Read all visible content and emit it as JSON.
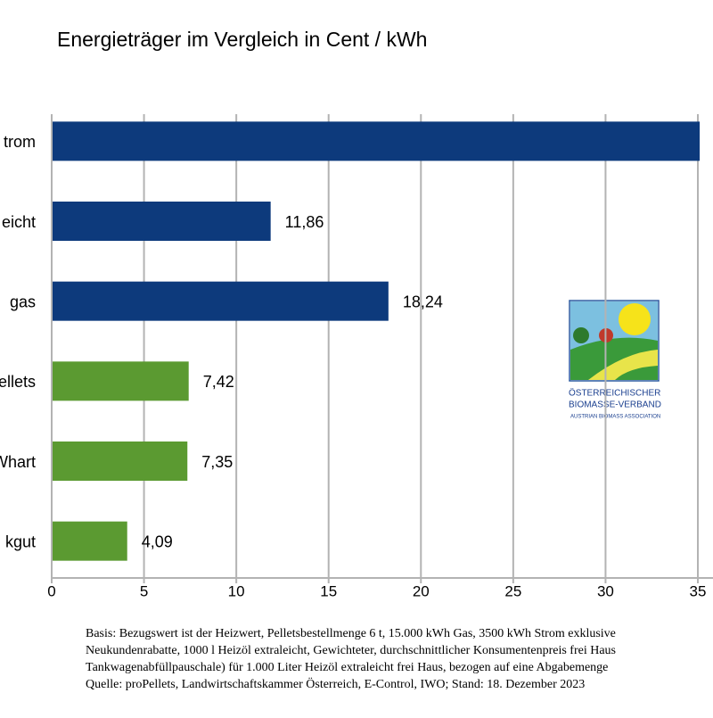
{
  "chart_data": {
    "type": "barh",
    "title": "Energieträger im Vergleich in Cent / kWh",
    "categories": [
      "trom",
      "eicht",
      "gas",
      "ellets",
      "Whart",
      "kgut"
    ],
    "values": [
      35.1,
      11.86,
      18.24,
      7.42,
      7.35,
      4.09
    ],
    "value_labels": [
      null,
      "11,86",
      "18,24",
      "7,42",
      "7,35",
      "4,09"
    ],
    "colors": [
      "#0d3a7c",
      "#0d3a7c",
      "#0d3a7c",
      "#5b9a31",
      "#5b9a31",
      "#5b9a31"
    ],
    "xlim": [
      0,
      35
    ],
    "xticks": [
      0,
      5,
      10,
      15,
      20,
      25,
      30,
      35
    ],
    "grid": true
  },
  "logo": {
    "line1": "Österreichischer",
    "line2": "Biomasse-Verband",
    "line3": "Austrian Biomass Association"
  },
  "footnote": [
    "Basis: Bezugswert ist der Heizwert, Pelletsbestellmenge 6 t, 15.000 kWh Gas, 3500 kWh Strom exklusive",
    "Neukundenrabatte, 1000 l Heizöl extraleicht, Gewichteter, durchschnittlicher Konsumentenpreis frei Haus",
    "Tankwagenabfüllpauschale) für 1.000 Liter Heizöl extraleicht frei Haus, bezogen auf eine Abgabemenge",
    "Quelle: proPellets, Landwirtschaftskammer Österreich, E-Control, IWO; Stand: 18. Dezember 2023"
  ]
}
